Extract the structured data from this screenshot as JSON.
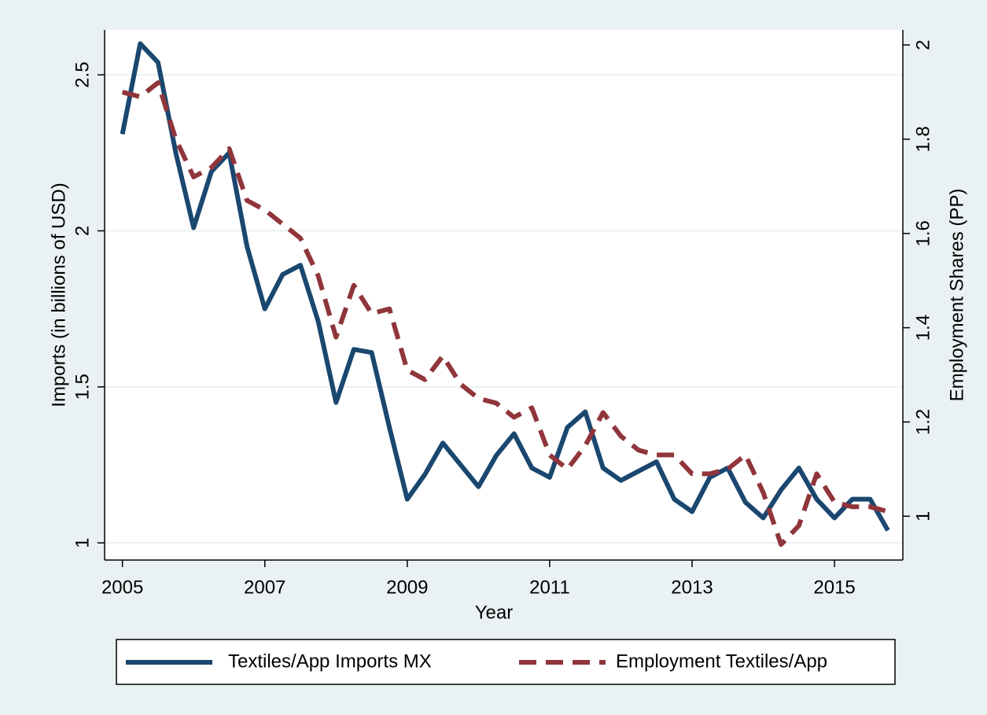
{
  "chart_data": {
    "type": "line",
    "xlabel": "Year",
    "ylabel": "Imports (in billions of USD)",
    "y2label": "Employment Shares (PP)",
    "x": [
      2005,
      2005.25,
      2005.5,
      2005.75,
      2006,
      2006.25,
      2006.5,
      2006.75,
      2007,
      2007.25,
      2007.5,
      2007.75,
      2008,
      2008.25,
      2008.5,
      2008.75,
      2009,
      2009.25,
      2009.5,
      2009.75,
      2010,
      2010.25,
      2010.5,
      2010.75,
      2011,
      2011.25,
      2011.5,
      2011.75,
      2012,
      2012.25,
      2012.5,
      2012.75,
      2013,
      2013.25,
      2013.5,
      2013.75,
      2014,
      2014.25,
      2014.5,
      2014.75,
      2015,
      2015.25,
      2015.5,
      2015.75
    ],
    "series": [
      {
        "name": "Textiles/App Imports MX",
        "color": "#1a476f",
        "dash": false,
        "values": [
          2.31,
          2.6,
          2.54,
          2.25,
          2.01,
          2.19,
          2.25,
          1.95,
          1.75,
          1.86,
          1.89,
          1.71,
          1.45,
          1.62,
          1.61,
          1.37,
          1.14,
          1.22,
          1.32,
          1.25,
          1.18,
          1.28,
          1.35,
          1.24,
          1.21,
          1.37,
          1.42,
          1.24,
          1.2,
          1.23,
          1.26,
          1.14,
          1.1,
          1.21,
          1.24,
          1.13,
          1.08,
          1.17,
          1.24,
          1.14,
          1.08,
          1.14,
          1.14,
          1.04
        ]
      },
      {
        "name": "Employment Textiles/App",
        "color": "#90353b",
        "dash": true,
        "axis": "y2",
        "values": [
          1.9,
          1.89,
          1.92,
          1.8,
          1.72,
          1.74,
          1.78,
          1.67,
          1.65,
          1.62,
          1.59,
          1.51,
          1.38,
          1.49,
          1.43,
          1.44,
          1.31,
          1.29,
          1.34,
          1.28,
          1.25,
          1.24,
          1.21,
          1.23,
          1.13,
          1.1,
          1.15,
          1.22,
          1.17,
          1.14,
          1.13,
          1.13,
          1.09,
          1.09,
          1.1,
          1.13,
          1.05,
          0.94,
          0.98,
          1.09,
          1.03,
          1.02,
          1.02,
          1.01
        ]
      }
    ],
    "xlim": [
      2004.75,
      2015.96
    ],
    "xticks": [
      2005,
      2007,
      2009,
      2011,
      2013,
      2015
    ],
    "ylim": [
      0.945,
      2.644
    ],
    "yticks": [
      1,
      1.5,
      2,
      2.5
    ],
    "y2lim": [
      0.907,
      2.032
    ],
    "y2ticks": [
      1,
      1.2,
      1.4,
      1.6,
      1.8,
      2
    ],
    "grid": true,
    "legend": "bottom"
  }
}
